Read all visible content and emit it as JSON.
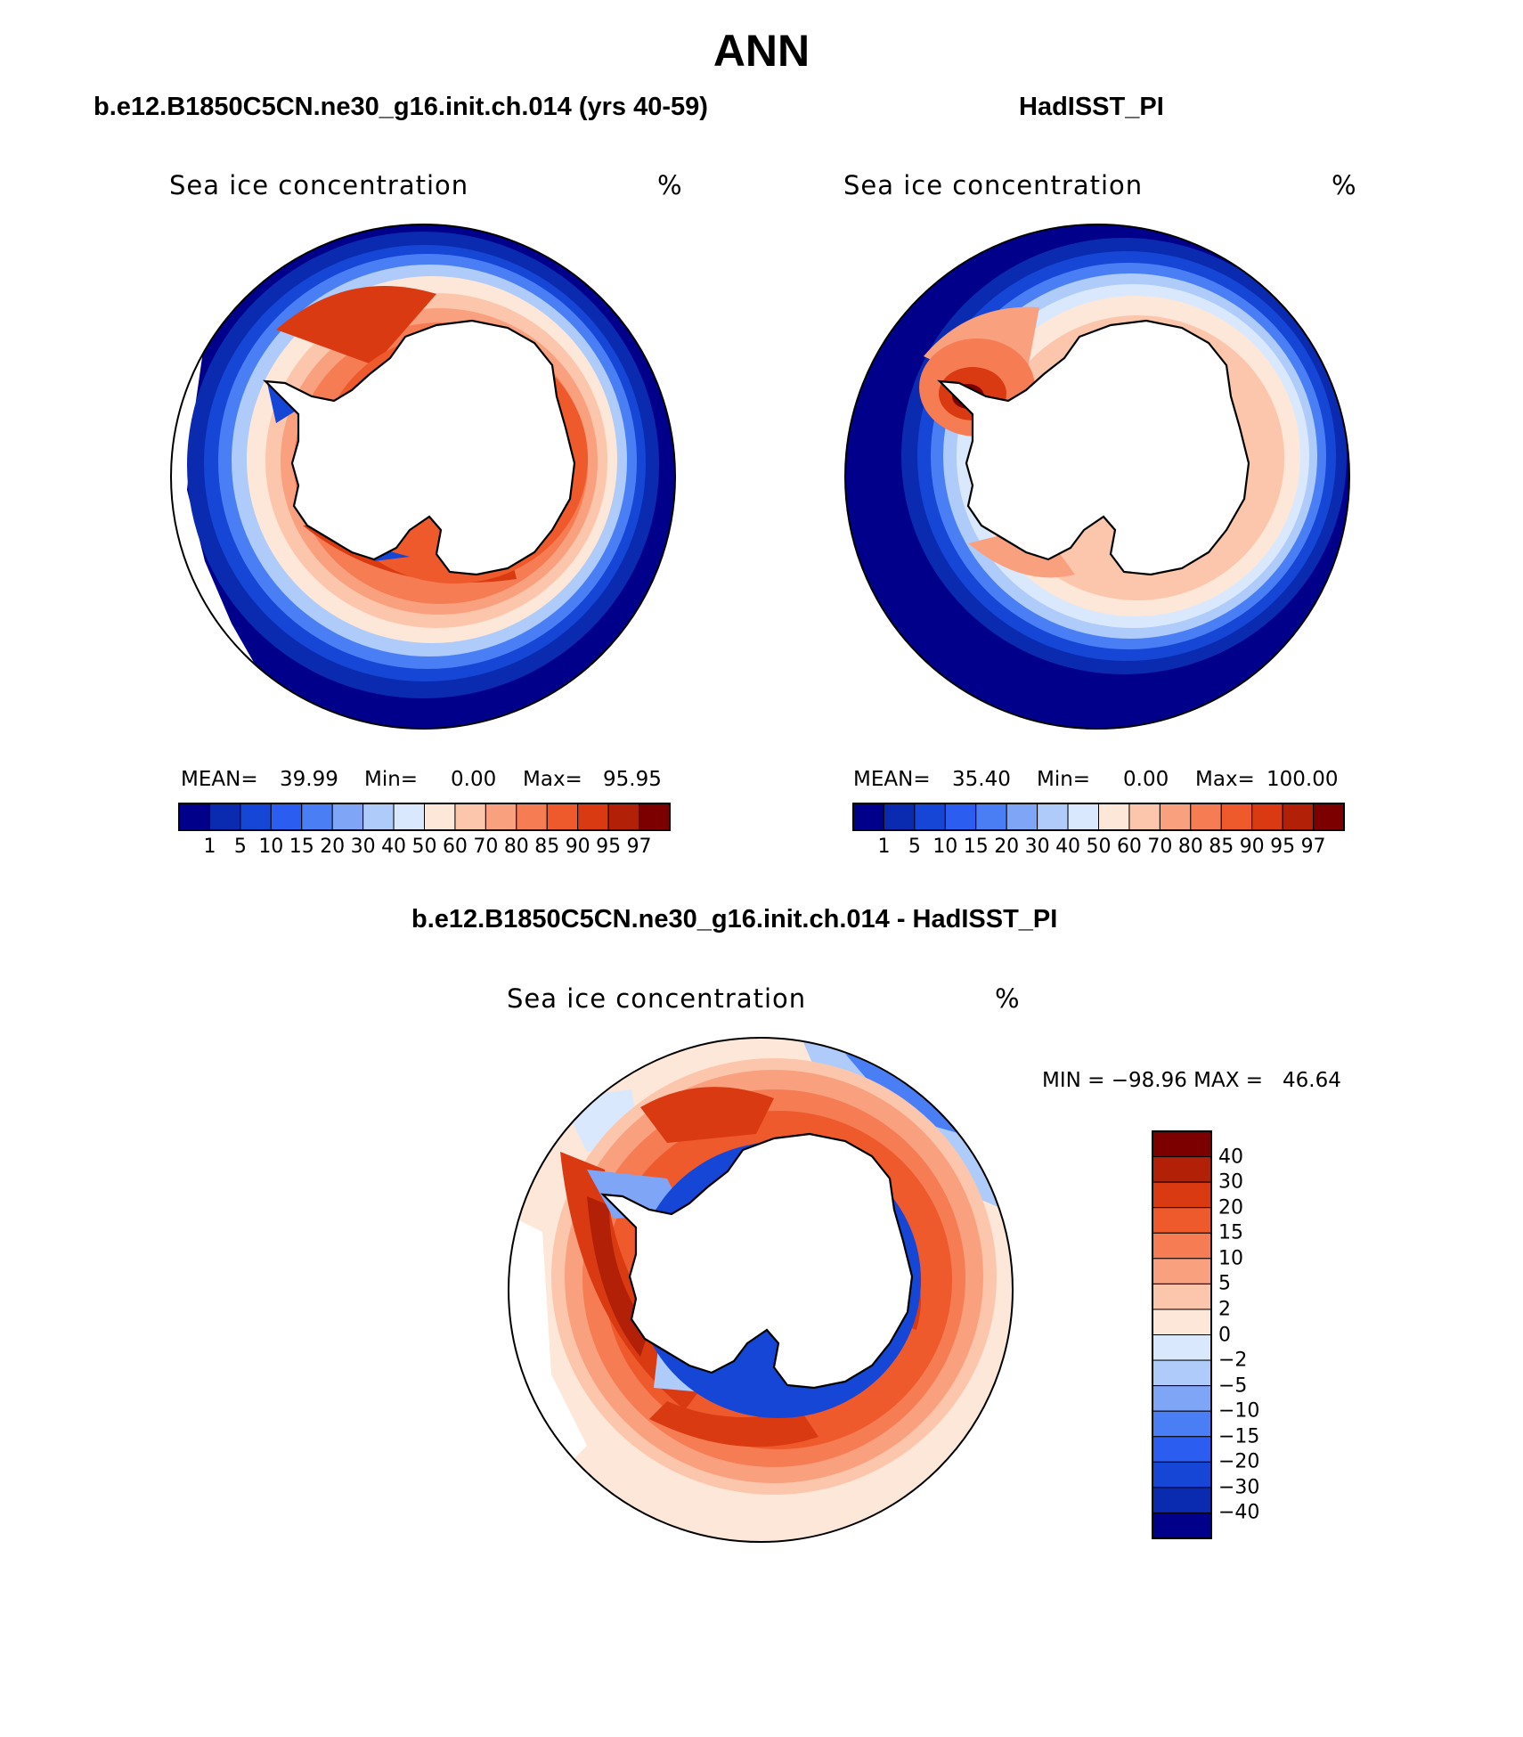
{
  "title": "ANN",
  "panels": [
    {
      "heading": "b.e12.B1850C5CN.ne30_g16.init.ch.014 (yrs 40-59)",
      "variable": "Sea ice concentration",
      "units": "%",
      "stats": {
        "mean_label": "MEAN=",
        "mean": "39.99",
        "min_label": "Min=",
        "min": "0.00",
        "max_label": "Max=",
        "max": "95.95"
      }
    },
    {
      "heading": "HadISST_PI",
      "variable": "Sea ice concentration",
      "units": "%",
      "stats": {
        "mean_label": "MEAN=",
        "mean": "35.40",
        "min_label": "Min=",
        "min": "0.00",
        "max_label": "Max=",
        "max": "100.00"
      }
    },
    {
      "heading": "b.e12.B1850C5CN.ne30_g16.init.ch.014 - HadISST_PI",
      "variable": "Sea ice concentration",
      "units": "%",
      "minmax": "MIN = −98.96 MAX =   46.64"
    }
  ],
  "colorbar_abs": {
    "labels": [
      "1",
      "5",
      "10",
      "15",
      "20",
      "30",
      "40",
      "50",
      "60",
      "70",
      "80",
      "85",
      "90",
      "95",
      "97"
    ],
    "colors": [
      "#00008b",
      "#0a2bb0",
      "#1546d6",
      "#2a5df0",
      "#4a7ef5",
      "#7fa5f7",
      "#aecbfa",
      "#d9e8fd",
      "#fde7d9",
      "#fcc6ad",
      "#f9a07f",
      "#f57c53",
      "#ef5a2c",
      "#d93a12",
      "#b32008",
      "#7d0000"
    ]
  },
  "colorbar_diff": {
    "labels": [
      "40",
      "30",
      "20",
      "15",
      "10",
      "5",
      "2",
      "0",
      "−2",
      "−5",
      "−10",
      "−15",
      "−20",
      "−30",
      "−40"
    ],
    "colors": [
      "#7d0000",
      "#b32008",
      "#d93a12",
      "#ef5a2c",
      "#f57c53",
      "#f9a07f",
      "#fcc6ad",
      "#fde7d9",
      "#d9e8fd",
      "#aecbfa",
      "#7fa5f7",
      "#4a7ef5",
      "#2a5df0",
      "#1546d6",
      "#0a2bb0",
      "#00008b"
    ]
  },
  "colors": {
    "land": "#ffffff",
    "coast": "#000000"
  }
}
